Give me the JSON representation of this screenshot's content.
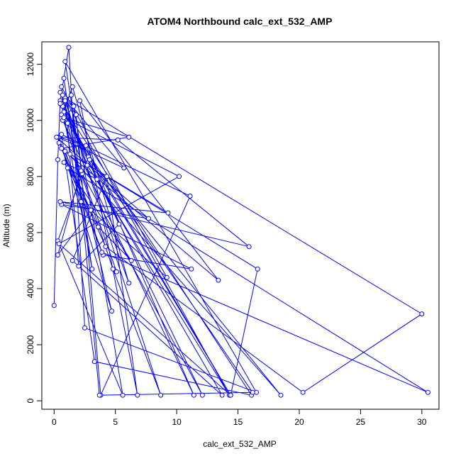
{
  "chart_data": {
    "type": "line",
    "title": "ATOM4 Northbound calc_ext_532_AMP",
    "xlabel": "calc_ext_532_AMP",
    "ylabel": "Altitude (m)",
    "xlim": [
      -1.0,
      31.4
    ],
    "ylim": [
      -300,
      12800
    ],
    "xticks": [
      0,
      5,
      10,
      15,
      20,
      25,
      30
    ],
    "yticks": [
      0,
      2000,
      4000,
      6000,
      8000,
      10000,
      12000
    ],
    "series_color": "#0000ff",
    "grid": false,
    "legend": "none",
    "series": [
      {
        "x": [
          0.0,
          0.3,
          0.5,
          1.2,
          2.5,
          16.5,
          0.9,
          2.3,
          12.1,
          0.6,
          3.1,
          0.8,
          2.2,
          9.2,
          0.6,
          1.1,
          4.7,
          0.4,
          2.6,
          11.4,
          0.7,
          1.6,
          5.6,
          0.3,
          2.8,
          14.4,
          0.8,
          1.5,
          6.1,
          0.5,
          1.8,
          3.8,
          11.1,
          0.6,
          3.3,
          16.1,
          0.7,
          2.9,
          18.5,
          0.4,
          4.2,
          20.3,
          30.0,
          0.9,
          2.0,
          5.3,
          0.5,
          1.4,
          3.7,
          16.2,
          0.6,
          4.8,
          8.7,
          0.9,
          2.7,
          14.3,
          0.7,
          5.7,
          0.3,
          3.6,
          6.3,
          0.8,
          3.5,
          13.7,
          1.5,
          4.3,
          6.8,
          2.1,
          13.4,
          0.9,
          4.0,
          11.2,
          0.6,
          7.7,
          0.2,
          5.2,
          15.9,
          0.5,
          9.3,
          1.3,
          16.6,
          14.4,
          0.4,
          10.2,
          0.8,
          6.1,
          0.6,
          3.9,
          30.5,
          1.1,
          3.0,
          0.3,
          2.2,
          5.1
        ],
        "y": [
          3400,
          8600,
          10700,
          12600,
          2600,
          300,
          12100,
          8100,
          200,
          10600,
          4700,
          11500,
          7100,
          4400,
          11200,
          9900,
          3200,
          9400,
          9100,
          200,
          10000,
          10500,
          200,
          5700,
          8700,
          200,
          10300,
          11200,
          4200,
          11000,
          10200,
          200,
          7300,
          9500,
          1400,
          200,
          10500,
          8600,
          200,
          9200,
          5500,
          300,
          3100,
          10800,
          4800,
          6300,
          10600,
          10900,
          200,
          300,
          10200,
          4700,
          200,
          10700,
          8400,
          200,
          10900,
          8300,
          9400,
          6200,
          5000,
          8500,
          7900,
          200,
          5000,
          8000,
          200,
          10700,
          4300,
          8900,
          5200,
          4700,
          7000,
          6500,
          9400,
          9300,
          5500,
          7100,
          6700,
          8800,
          4700,
          200,
          5600,
          8000,
          10100,
          9400,
          9000,
          5300,
          300,
          8300,
          6800,
          5200,
          8200,
          4600
        ]
      }
    ]
  }
}
